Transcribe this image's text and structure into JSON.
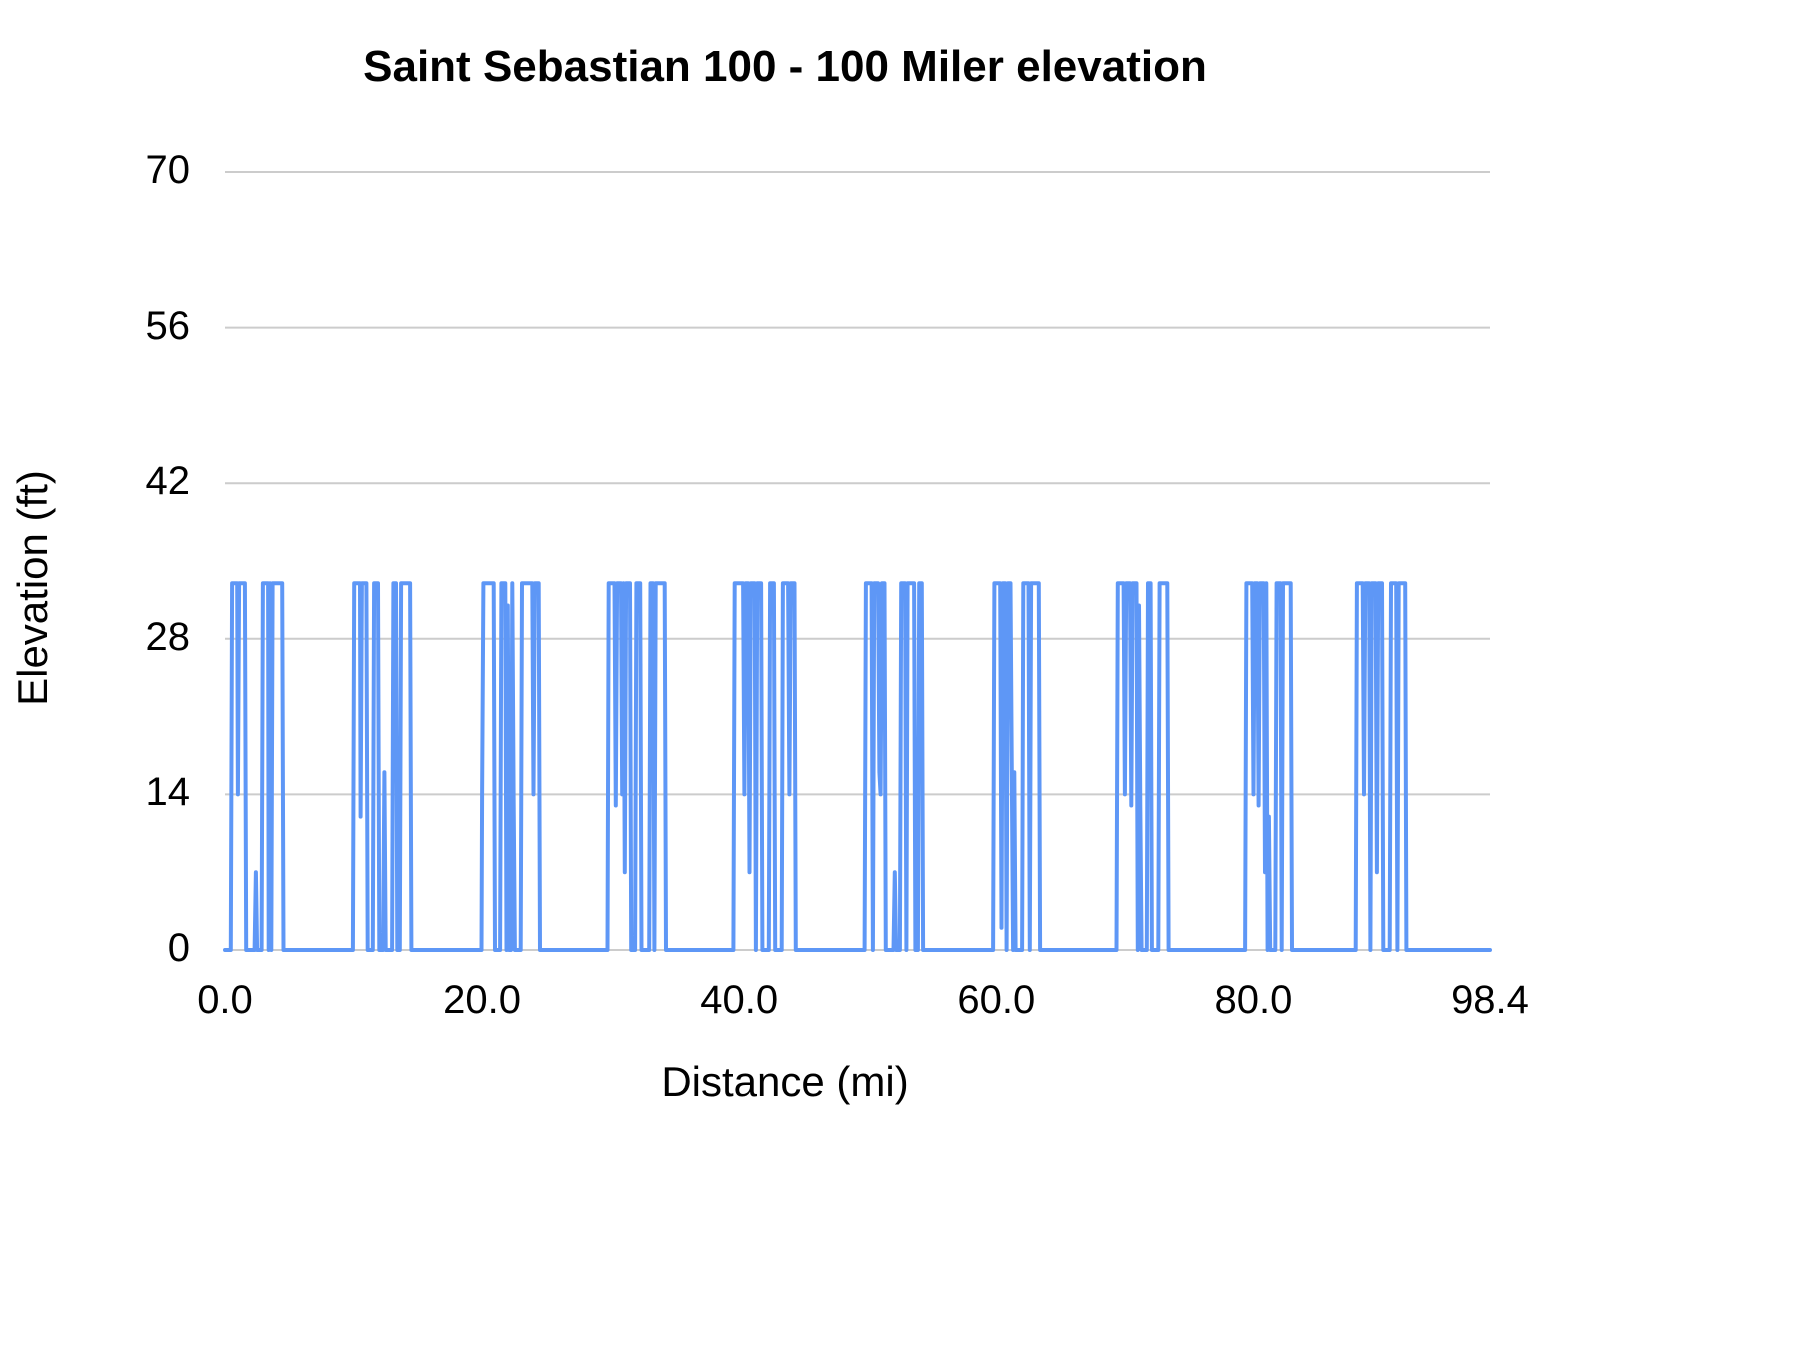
{
  "chart_data": {
    "type": "line",
    "title": "Saint Sebastian 100 - 100 Miler elevation",
    "xlabel": "Distance (mi)",
    "ylabel": "Elevation (ft)",
    "xlim": [
      0,
      98.4
    ],
    "ylim": [
      0,
      70
    ],
    "grid": true,
    "legend": "none",
    "line_color": "#5e97f6",
    "gridline_color": "#cccccc",
    "y_ticks": [
      {
        "value": 0,
        "label": "0"
      },
      {
        "value": 14,
        "label": "14"
      },
      {
        "value": 28,
        "label": "28"
      },
      {
        "value": 42,
        "label": "42"
      },
      {
        "value": 56,
        "label": "56"
      },
      {
        "value": 70,
        "label": "70"
      }
    ],
    "x_ticks": [
      {
        "value": 0,
        "label": "0.0"
      },
      {
        "value": 20,
        "label": "20.0"
      },
      {
        "value": 40,
        "label": "40.0"
      },
      {
        "value": 60,
        "label": "60.0"
      },
      {
        "value": 80,
        "label": "80.0"
      },
      {
        "value": 98.4,
        "label": "98.4"
      }
    ],
    "series": [
      {
        "name": "Elevation",
        "points": [
          [
            0,
            0
          ],
          [
            0.45,
            0
          ],
          [
            0.55,
            33
          ],
          [
            0.95,
            33
          ],
          [
            1.0,
            14
          ],
          [
            1.1,
            33
          ],
          [
            1.55,
            33
          ],
          [
            1.65,
            0
          ],
          [
            2.3,
            0
          ],
          [
            2.4,
            7
          ],
          [
            2.5,
            0
          ],
          [
            2.85,
            0
          ],
          [
            2.95,
            33
          ],
          [
            3.35,
            33
          ],
          [
            3.4,
            0
          ],
          [
            3.5,
            33
          ],
          [
            3.6,
            0
          ],
          [
            3.7,
            33
          ],
          [
            4.45,
            33
          ],
          [
            4.55,
            0
          ],
          [
            9.95,
            0
          ],
          [
            10.05,
            33
          ],
          [
            10.5,
            33
          ],
          [
            10.55,
            12
          ],
          [
            10.65,
            33
          ],
          [
            11.0,
            33
          ],
          [
            11.1,
            0
          ],
          [
            11.5,
            0
          ],
          [
            11.6,
            33
          ],
          [
            11.9,
            33
          ],
          [
            12.0,
            0
          ],
          [
            12.3,
            0
          ],
          [
            12.4,
            16
          ],
          [
            12.5,
            0
          ],
          [
            13.0,
            0
          ],
          [
            13.1,
            33
          ],
          [
            13.3,
            33
          ],
          [
            13.4,
            0
          ],
          [
            13.6,
            0
          ],
          [
            13.7,
            33
          ],
          [
            14.4,
            33
          ],
          [
            14.5,
            0
          ],
          [
            19.95,
            0
          ],
          [
            20.0,
            14
          ],
          [
            20.1,
            33
          ],
          [
            20.9,
            33
          ],
          [
            21.0,
            0
          ],
          [
            21.4,
            0
          ],
          [
            21.5,
            33
          ],
          [
            21.8,
            33
          ],
          [
            21.9,
            0
          ],
          [
            22.0,
            31
          ],
          [
            22.1,
            0
          ],
          [
            22.25,
            0
          ],
          [
            22.35,
            33
          ],
          [
            22.45,
            14
          ],
          [
            22.55,
            0
          ],
          [
            23.0,
            0
          ],
          [
            23.1,
            33
          ],
          [
            23.9,
            33
          ],
          [
            24.0,
            14
          ],
          [
            24.1,
            33
          ],
          [
            24.4,
            33
          ],
          [
            24.5,
            0
          ],
          [
            29.75,
            0
          ],
          [
            29.85,
            33
          ],
          [
            30.3,
            33
          ],
          [
            30.4,
            13
          ],
          [
            30.5,
            33
          ],
          [
            30.8,
            33
          ],
          [
            30.9,
            14
          ],
          [
            31.0,
            33
          ],
          [
            31.1,
            7
          ],
          [
            31.2,
            33
          ],
          [
            31.5,
            33
          ],
          [
            31.6,
            0
          ],
          [
            31.9,
            0
          ],
          [
            32.0,
            33
          ],
          [
            32.3,
            33
          ],
          [
            32.4,
            0
          ],
          [
            33.0,
            0
          ],
          [
            33.1,
            33
          ],
          [
            33.3,
            33
          ],
          [
            33.4,
            0
          ],
          [
            33.5,
            33
          ],
          [
            34.2,
            33
          ],
          [
            34.3,
            0
          ],
          [
            39.55,
            0
          ],
          [
            39.65,
            33
          ],
          [
            40.3,
            33
          ],
          [
            40.4,
            14
          ],
          [
            40.5,
            33
          ],
          [
            40.7,
            33
          ],
          [
            40.8,
            7
          ],
          [
            40.9,
            33
          ],
          [
            41.2,
            33
          ],
          [
            41.3,
            0
          ],
          [
            41.4,
            33
          ],
          [
            41.7,
            33
          ],
          [
            41.8,
            0
          ],
          [
            42.3,
            0
          ],
          [
            42.4,
            33
          ],
          [
            42.7,
            33
          ],
          [
            42.8,
            0
          ],
          [
            43.3,
            0
          ],
          [
            43.4,
            33
          ],
          [
            43.8,
            33
          ],
          [
            43.9,
            14
          ],
          [
            44.0,
            33
          ],
          [
            44.3,
            33
          ],
          [
            44.4,
            0
          ],
          [
            49.75,
            0
          ],
          [
            49.85,
            33
          ],
          [
            50.3,
            33
          ],
          [
            50.4,
            0
          ],
          [
            50.5,
            33
          ],
          [
            50.8,
            33
          ],
          [
            50.9,
            16
          ],
          [
            51.0,
            14
          ],
          [
            51.1,
            33
          ],
          [
            51.3,
            33
          ],
          [
            51.4,
            0
          ],
          [
            52.0,
            0
          ],
          [
            52.1,
            7
          ],
          [
            52.2,
            0
          ],
          [
            52.5,
            0
          ],
          [
            52.6,
            33
          ],
          [
            52.9,
            33
          ],
          [
            53.0,
            0
          ],
          [
            53.1,
            33
          ],
          [
            53.6,
            33
          ],
          [
            53.7,
            0
          ],
          [
            53.9,
            0
          ],
          [
            54.0,
            33
          ],
          [
            54.2,
            33
          ],
          [
            54.3,
            0
          ],
          [
            59.75,
            0
          ],
          [
            59.85,
            33
          ],
          [
            60.3,
            33
          ],
          [
            60.4,
            2
          ],
          [
            60.5,
            33
          ],
          [
            60.7,
            33
          ],
          [
            60.8,
            0
          ],
          [
            60.9,
            33
          ],
          [
            61.1,
            33
          ],
          [
            61.2,
            16
          ],
          [
            61.3,
            0
          ],
          [
            61.4,
            16
          ],
          [
            61.5,
            0
          ],
          [
            62.0,
            0
          ],
          [
            62.1,
            33
          ],
          [
            62.5,
            33
          ],
          [
            62.6,
            0
          ],
          [
            62.7,
            33
          ],
          [
            63.3,
            33
          ],
          [
            63.4,
            0
          ],
          [
            69.35,
            0
          ],
          [
            69.45,
            33
          ],
          [
            69.9,
            33
          ],
          [
            70.0,
            14
          ],
          [
            70.1,
            33
          ],
          [
            70.4,
            33
          ],
          [
            70.5,
            13
          ],
          [
            70.6,
            33
          ],
          [
            70.9,
            33
          ],
          [
            71.0,
            0
          ],
          [
            71.1,
            31
          ],
          [
            71.2,
            13
          ],
          [
            71.3,
            0
          ],
          [
            71.7,
            0
          ],
          [
            71.8,
            33
          ],
          [
            72.0,
            33
          ],
          [
            72.1,
            0
          ],
          [
            72.6,
            0
          ],
          [
            72.7,
            33
          ],
          [
            73.3,
            33
          ],
          [
            73.4,
            0
          ],
          [
            79.35,
            0
          ],
          [
            79.45,
            33
          ],
          [
            79.9,
            33
          ],
          [
            80.0,
            14
          ],
          [
            80.1,
            33
          ],
          [
            80.3,
            33
          ],
          [
            80.4,
            13
          ],
          [
            80.5,
            33
          ],
          [
            80.8,
            33
          ],
          [
            80.9,
            7
          ],
          [
            81.0,
            33
          ],
          [
            81.1,
            0
          ],
          [
            81.2,
            12
          ],
          [
            81.3,
            0
          ],
          [
            81.7,
            0
          ],
          [
            81.8,
            33
          ],
          [
            82.1,
            33
          ],
          [
            82.2,
            0
          ],
          [
            82.3,
            33
          ],
          [
            82.9,
            33
          ],
          [
            83.0,
            0
          ],
          [
            87.95,
            0
          ],
          [
            88.05,
            33
          ],
          [
            88.5,
            33
          ],
          [
            88.6,
            14
          ],
          [
            88.7,
            33
          ],
          [
            89.0,
            33
          ],
          [
            89.1,
            0
          ],
          [
            89.2,
            33
          ],
          [
            89.5,
            33
          ],
          [
            89.6,
            7
          ],
          [
            89.7,
            33
          ],
          [
            90.0,
            33
          ],
          [
            90.1,
            0
          ],
          [
            90.6,
            0
          ],
          [
            90.7,
            33
          ],
          [
            91.1,
            33
          ],
          [
            91.2,
            0
          ],
          [
            91.3,
            33
          ],
          [
            91.8,
            33
          ],
          [
            91.9,
            0
          ],
          [
            92.0,
            0
          ],
          [
            98.4,
            0
          ]
        ]
      }
    ]
  }
}
